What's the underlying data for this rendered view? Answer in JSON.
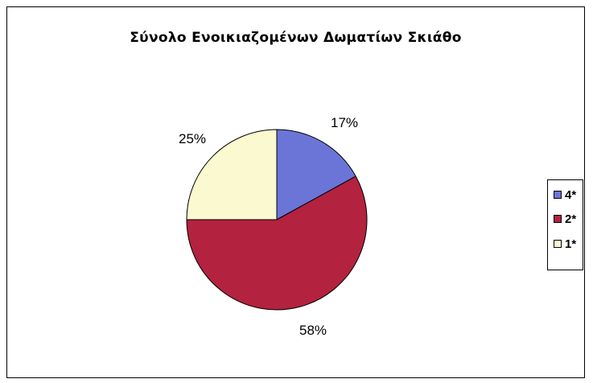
{
  "chart_data": {
    "type": "pie",
    "title": "Σύνολο Ενοικιαζομένων Δωματίων Σκιάθο",
    "slices": [
      {
        "label": "4*",
        "value": 17,
        "display": "17%",
        "color": "#6b75d8"
      },
      {
        "label": "2*",
        "value": 58,
        "display": "58%",
        "color": "#b3223f"
      },
      {
        "label": "1*",
        "value": 25,
        "display": "25%",
        "color": "#fbf9cf"
      }
    ],
    "legend_position": "right"
  }
}
